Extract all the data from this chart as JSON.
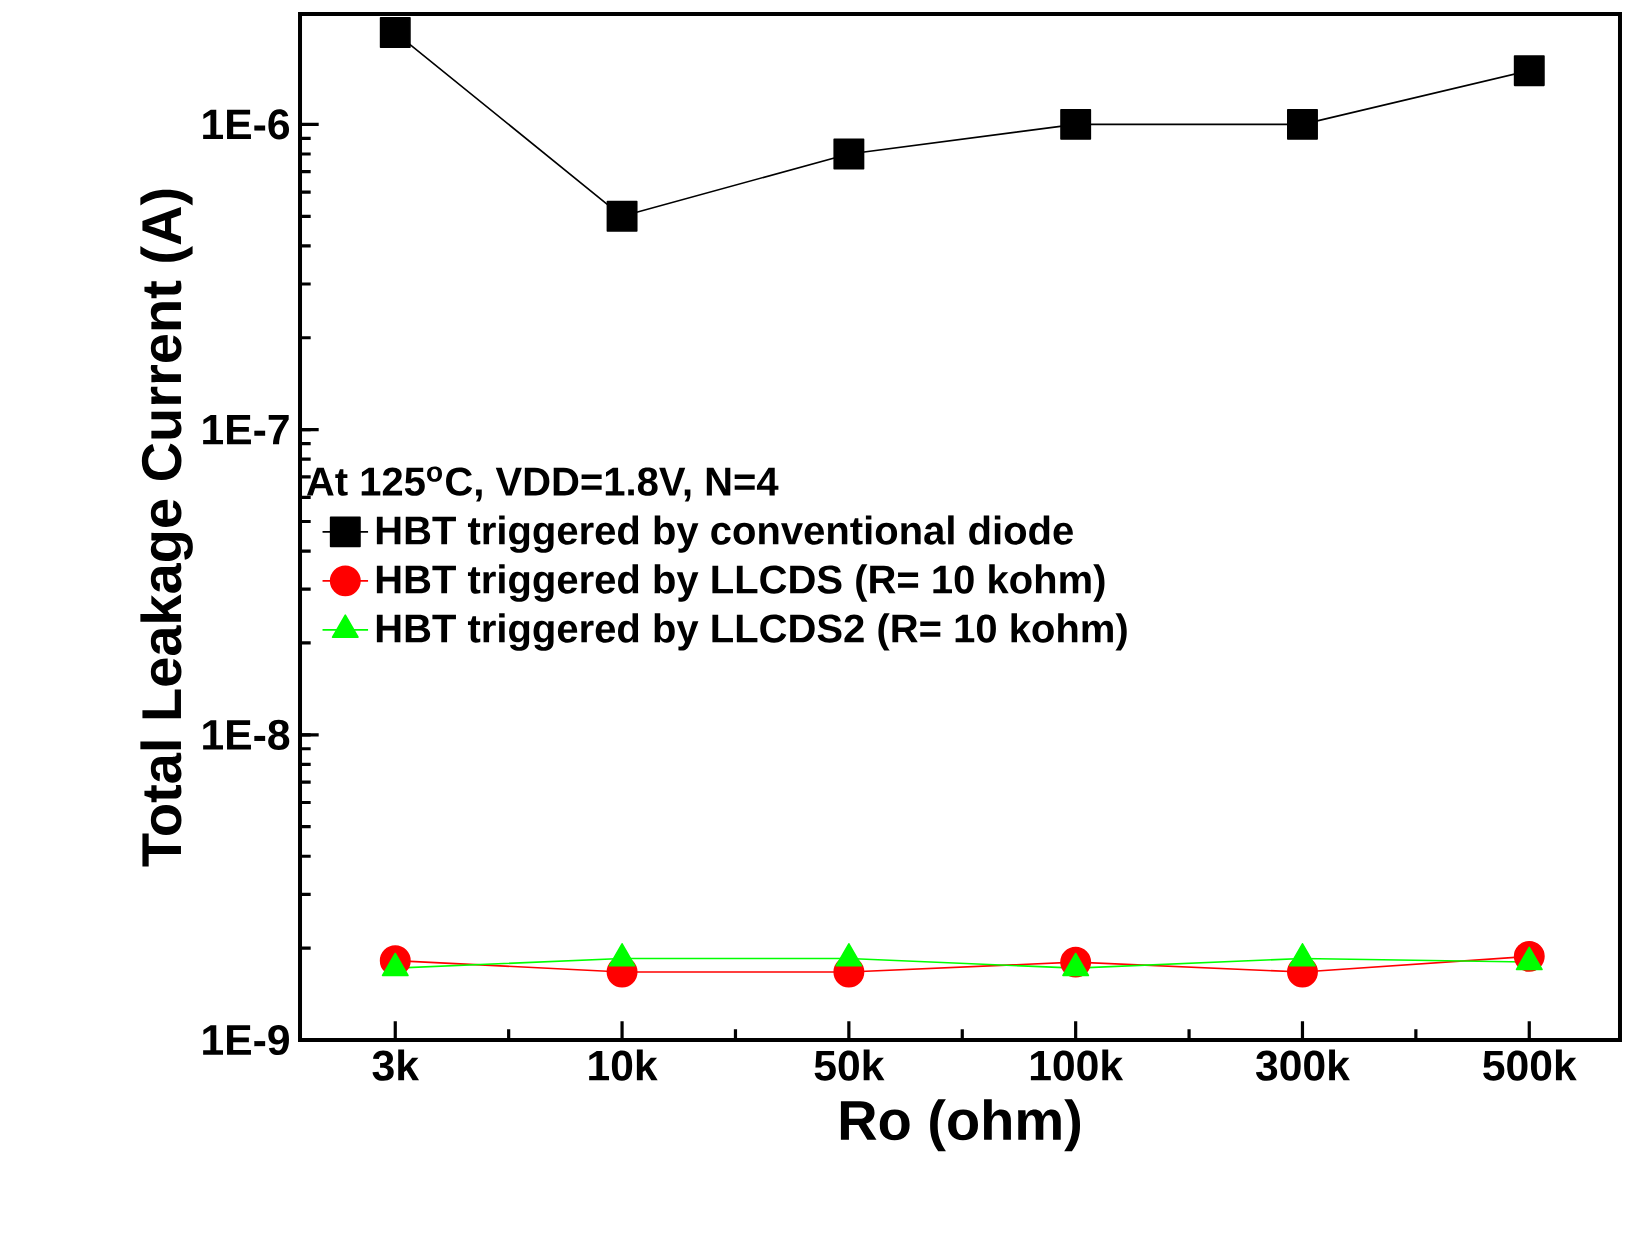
{
  "chart_data": {
    "type": "line",
    "xlabel": "Ro (ohm)",
    "ylabel": "Total Leakage Current (A)",
    "legend_title": "At 125$^{o}$C, VDD=1.8V, N=4",
    "categories": [
      "3k",
      "10k",
      "50k",
      "100k",
      "300k",
      "500k"
    ],
    "series": [
      {
        "name": "HBT triggered by conventional diode",
        "color": "#000000",
        "marker": "square",
        "values": [
          2e-06,
          5e-07,
          8e-07,
          1e-06,
          1e-06,
          1.5e-06
        ]
      },
      {
        "name": "HBT triggered by LLCDS (R= 10 kohm)",
        "color": "#ff0000",
        "marker": "circle",
        "values": [
          1.82e-09,
          1.67e-09,
          1.67e-09,
          1.8e-09,
          1.67e-09,
          1.88e-09
        ]
      },
      {
        "name": "HBT triggered by LLCDS2 (R= 10 kohm)",
        "color": "#00ff00",
        "marker": "triangle",
        "values": [
          1.72e-09,
          1.85e-09,
          1.85e-09,
          1.72e-09,
          1.85e-09,
          1.8e-09
        ]
      }
    ],
    "log": "y",
    "ylim": [
      1e-09,
      2.3e-06
    ],
    "yticks": [
      {
        "value": 1e-09,
        "label": "1E-9"
      },
      {
        "value": 1e-08,
        "label": "1E-8"
      },
      {
        "value": 1e-07,
        "label": "1E-7"
      },
      {
        "value": 1e-06,
        "label": "1E-6"
      }
    ],
    "grid": false,
    "legend": "left",
    "line_style": "solid"
  }
}
